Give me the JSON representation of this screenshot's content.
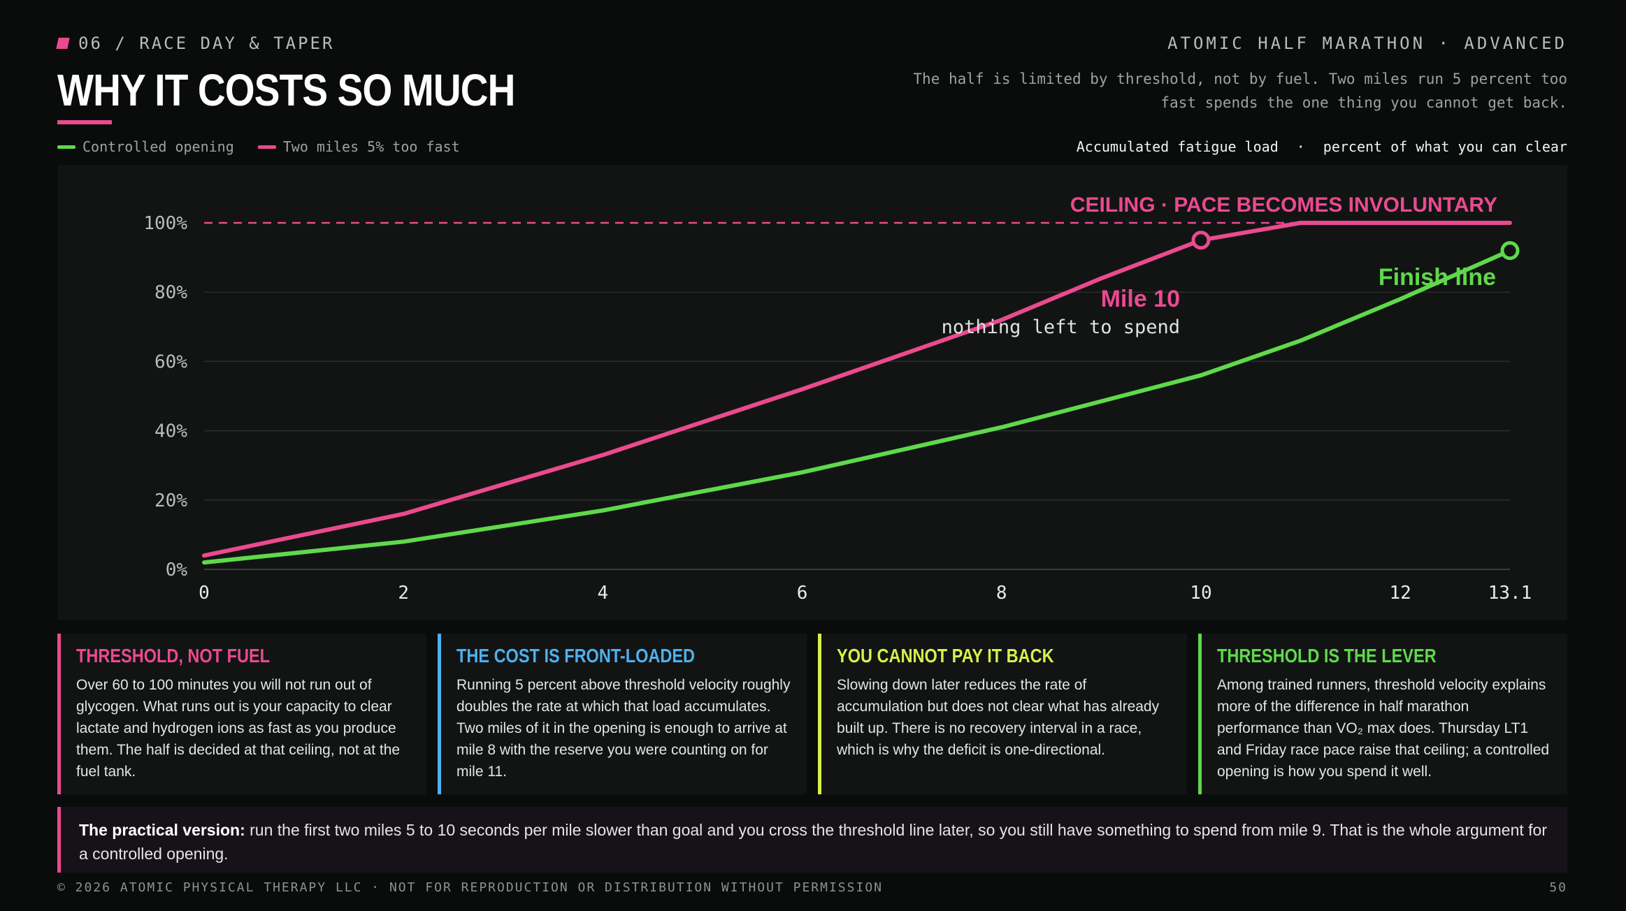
{
  "header": {
    "kicker": "06 / RACE DAY & TAPER",
    "brand": "ATOMIC HALF MARATHON · ADVANCED",
    "title": "WHY IT COSTS SO MUCH",
    "subtitle": "The half is limited by threshold, not by fuel. Two miles run 5 percent too fast spends the one thing you cannot get back."
  },
  "legend": {
    "items": [
      {
        "label": "Controlled opening",
        "color": "#5fd94b"
      },
      {
        "label": "Two miles 5% too fast",
        "color": "#ea4a8f"
      }
    ]
  },
  "meta": {
    "left": "Accumulated fatigue load",
    "sep": "·",
    "right": "percent of what you can clear"
  },
  "colors": {
    "pink": "#ea4a8f",
    "green": "#5fd94b",
    "blue": "#4fb0ee",
    "yellow": "#d6f04a"
  },
  "chart_data": {
    "type": "line",
    "xlim": [
      0,
      13.1
    ],
    "ylim": [
      0,
      100
    ],
    "xticks": [
      0,
      2,
      4,
      6,
      8,
      10,
      12,
      13.1
    ],
    "xtick_labels": [
      "0",
      "2",
      "4",
      "6",
      "8",
      "10",
      "12",
      "13.1"
    ],
    "yticks": [
      0,
      20,
      40,
      60,
      80,
      100
    ],
    "ytick_labels": [
      "0%",
      "20%",
      "40%",
      "60%",
      "80%",
      "100%"
    ],
    "grid": true,
    "series": [
      {
        "name": "Controlled opening",
        "color": "#5fd94b",
        "x": [
          0,
          2,
          4,
          6,
          8,
          10,
          11,
          12,
          13.1
        ],
        "y": [
          2,
          8,
          17,
          28,
          41,
          56,
          66,
          78,
          92
        ]
      },
      {
        "name": "Two miles 5% too fast",
        "color": "#ea4a8f",
        "x": [
          0,
          2,
          4,
          6,
          8,
          9,
          10,
          11,
          12,
          13.1
        ],
        "y": [
          4,
          16,
          33,
          52,
          72,
          84,
          95,
          100,
          100,
          100
        ]
      }
    ],
    "ceiling": {
      "value": 100,
      "label": "CEILING · PACE BECOMES INVOLUNTARY"
    },
    "annotations": [
      {
        "x": 10,
        "y": 95,
        "label": "Mile 10",
        "sublabel": "nothing left to spend",
        "color": "#ea4a8f"
      },
      {
        "x": 13.1,
        "y": 92,
        "label": "Finish line",
        "color": "#5fd94b"
      }
    ]
  },
  "cards": [
    {
      "title": "THRESHOLD, NOT FUEL",
      "color": "#ea4a8f",
      "body": "Over 60 to 100 minutes you will not run out of glycogen. What runs out is your capacity to clear lactate and hydrogen ions as fast as you produce them. The half is decided at that ceiling, not at the fuel tank."
    },
    {
      "title": "THE COST IS FRONT-LOADED",
      "color": "#4fb0ee",
      "body": "Running 5 percent above threshold velocity roughly doubles the rate at which that load accumulates. Two miles of it in the opening is enough to arrive at mile 8 with the reserve you were counting on for mile 11."
    },
    {
      "title": "YOU CANNOT PAY IT BACK",
      "color": "#d6f04a",
      "body": "Slowing down later reduces the rate of accumulation but does not clear what has already built up. There is no recovery interval in a race, which is why the deficit is one-directional."
    },
    {
      "title": "THRESHOLD IS THE LEVER",
      "color": "#5fd94b",
      "body": "Among trained runners, threshold velocity explains more of the difference in half marathon performance than VO₂ max does. Thursday LT1 and Friday race pace raise that ceiling; a controlled opening is how you spend it well."
    }
  ],
  "practical": {
    "lead": "The practical version:",
    "text": " run the first two miles 5 to 10 seconds per mile slower than goal and you cross the threshold line later, so you still have something to spend from mile 9. That is the whole argument for a controlled opening."
  },
  "footer": {
    "left": "© 2026 ATOMIC PHYSICAL THERAPY LLC · NOT FOR REPRODUCTION OR DISTRIBUTION WITHOUT PERMISSION",
    "right": "50"
  }
}
